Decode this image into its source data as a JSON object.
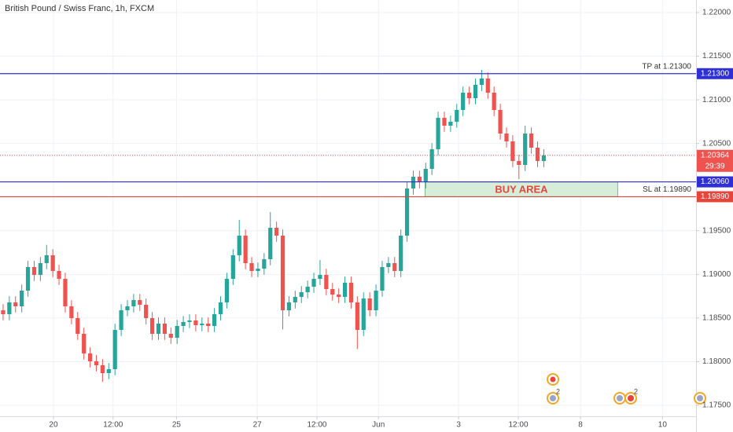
{
  "chart_data": {
    "type": "candlestick",
    "title": "British Pound / Swiss Franc, 1h, FXCM",
    "ylim": [
      1.17374,
      1.22144
    ],
    "yticks": [
      {
        "value": 1.22,
        "label": "1.22000"
      },
      {
        "value": 1.215,
        "label": "1.21500"
      },
      {
        "value": 1.21,
        "label": "1.21000"
      },
      {
        "value": 1.205,
        "label": "1.20500"
      },
      {
        "value": 1.195,
        "label": "1.19500"
      },
      {
        "value": 1.19,
        "label": "1.19000"
      },
      {
        "value": 1.185,
        "label": "1.18500"
      },
      {
        "value": 1.18,
        "label": "1.18000"
      },
      {
        "value": 1.175,
        "label": "1.17500"
      }
    ],
    "xlim": [
      0,
      112
    ],
    "xticks": [
      {
        "value": 8.6,
        "label": "20"
      },
      {
        "value": 18.2,
        "label": "12:00"
      },
      {
        "value": 28.4,
        "label": "25"
      },
      {
        "value": 41.4,
        "label": "27"
      },
      {
        "value": 51.0,
        "label": "12:00"
      },
      {
        "value": 60.9,
        "label": "Jun"
      },
      {
        "value": 73.8,
        "label": "3"
      },
      {
        "value": 83.4,
        "label": "12:00"
      },
      {
        "value": 93.4,
        "label": "8"
      },
      {
        "value": 106.6,
        "label": "10"
      }
    ],
    "grid": true,
    "up_color": "#26a69a",
    "down_color": "#ef5350",
    "series": [
      {
        "open": [
          1.18589,
          1.18544,
          1.18679,
          1.18634,
          1.18814,
          1.19084,
          1.18994,
          1.19129,
          1.19219,
          1.19039,
          1.18949,
          1.18634,
          1.18499,
          1.18319,
          1.18094,
          1.18004,
          1.17959,
          1.17869,
          1.17914,
          1.18364,
          1.18589,
          1.18634,
          1.18706,
          1.18652,
          1.18499,
          1.18319,
          1.18436,
          1.18319,
          1.18274,
          1.18409,
          1.18454,
          1.18472,
          1.18418,
          1.18436,
          1.18409,
          1.18544,
          1.18679,
          1.18949,
          1.19219,
          1.19444,
          1.19129,
          1.19039,
          1.19066,
          1.19174,
          1.19534,
          1.19444,
          1.18589,
          1.18679,
          1.18742,
          1.18796,
          1.18859,
          1.18949,
          1.18994,
          1.18832,
          1.18769,
          1.18742,
          1.18904,
          1.18679,
          1.18364,
          1.18724,
          1.18589,
          1.18814,
          1.19084,
          1.19129,
          1.19039,
          1.19444,
          1.19984,
          1.20119,
          1.20056,
          1.20209,
          1.20434,
          1.20794,
          1.20704,
          1.20749,
          1.20884,
          1.21082,
          1.21019,
          1.21172,
          1.21244,
          1.21082,
          1.20884,
          1.20614,
          1.20524,
          1.20299,
          1.20254,
          1.20614,
          1.20452,
          1.20299
        ],
        "high": [
          1.18659,
          1.18749,
          1.18749,
          1.18884,
          1.19154,
          1.19154,
          1.19199,
          1.19339,
          1.19289,
          1.19109,
          1.19019,
          1.18704,
          1.18569,
          1.18389,
          1.18164,
          1.18074,
          1.18029,
          1.17984,
          1.18434,
          1.18659,
          1.18704,
          1.18776,
          1.18776,
          1.18722,
          1.18569,
          1.18506,
          1.18506,
          1.18389,
          1.18479,
          1.18524,
          1.18542,
          1.18542,
          1.18506,
          1.18506,
          1.18614,
          1.18749,
          1.19019,
          1.19289,
          1.19624,
          1.19514,
          1.19199,
          1.19136,
          1.19244,
          1.19714,
          1.19604,
          1.19514,
          1.18749,
          1.18812,
          1.18866,
          1.18929,
          1.19019,
          1.19164,
          1.19064,
          1.18902,
          1.18839,
          1.18974,
          1.18974,
          1.18749,
          1.18794,
          1.18794,
          1.18884,
          1.19154,
          1.19199,
          1.19199,
          1.19514,
          1.20054,
          1.20189,
          1.20189,
          1.20279,
          1.20504,
          1.20864,
          1.20864,
          1.20819,
          1.20954,
          1.21152,
          1.21152,
          1.21242,
          1.21344,
          1.21314,
          1.21152,
          1.20954,
          1.20684,
          1.20594,
          1.20369,
          1.20704,
          1.20684,
          1.20522,
          1.20434
        ],
        "low": [
          1.18474,
          1.18474,
          1.18564,
          1.18564,
          1.18744,
          1.18924,
          1.18924,
          1.19059,
          1.18969,
          1.18879,
          1.18564,
          1.18429,
          1.18249,
          1.18024,
          1.17934,
          1.17889,
          1.17769,
          1.17799,
          1.17844,
          1.18294,
          1.18519,
          1.18564,
          1.18582,
          1.18429,
          1.18249,
          1.18249,
          1.18249,
          1.18204,
          1.18204,
          1.18339,
          1.18384,
          1.18348,
          1.18348,
          1.18339,
          1.18339,
          1.18474,
          1.18609,
          1.18879,
          1.19149,
          1.19059,
          1.18969,
          1.18969,
          1.18996,
          1.19104,
          1.19374,
          1.18369,
          1.18519,
          1.18609,
          1.18672,
          1.18726,
          1.18789,
          1.18879,
          1.18762,
          1.18699,
          1.18672,
          1.18672,
          1.18609,
          1.18144,
          1.18294,
          1.18519,
          1.18519,
          1.18744,
          1.19014,
          1.18969,
          1.18969,
          1.19374,
          1.19914,
          1.19986,
          1.19986,
          1.20139,
          1.20364,
          1.20634,
          1.20634,
          1.20679,
          1.20814,
          1.20949,
          1.20949,
          1.21102,
          1.21012,
          1.20814,
          1.20544,
          1.20454,
          1.20229,
          1.20094,
          1.20184,
          1.20382,
          1.20229,
          1.20229
        ],
        "close": [
          1.18544,
          1.18679,
          1.18634,
          1.18814,
          1.19084,
          1.18994,
          1.19129,
          1.19219,
          1.19039,
          1.18949,
          1.18634,
          1.18499,
          1.18319,
          1.18094,
          1.18004,
          1.17959,
          1.17869,
          1.17914,
          1.18364,
          1.18589,
          1.18634,
          1.18706,
          1.18652,
          1.18499,
          1.18319,
          1.18436,
          1.18319,
          1.18274,
          1.18409,
          1.18454,
          1.18472,
          1.18418,
          1.18436,
          1.18409,
          1.18544,
          1.18679,
          1.18949,
          1.19219,
          1.19444,
          1.19129,
          1.19039,
          1.19066,
          1.19174,
          1.19534,
          1.19444,
          1.18589,
          1.18679,
          1.18742,
          1.18796,
          1.18859,
          1.18949,
          1.18994,
          1.18832,
          1.18769,
          1.18742,
          1.18904,
          1.18679,
          1.18364,
          1.18724,
          1.18589,
          1.18814,
          1.19084,
          1.19129,
          1.19039,
          1.19444,
          1.19984,
          1.20119,
          1.20056,
          1.20209,
          1.20434,
          1.20794,
          1.20704,
          1.20749,
          1.20884,
          1.21082,
          1.21019,
          1.21172,
          1.21244,
          1.21082,
          1.20884,
          1.20614,
          1.20524,
          1.20299,
          1.20254,
          1.20614,
          1.20452,
          1.20299,
          1.20364
        ]
      }
    ],
    "levels": [
      {
        "name": "TP at 1.21300",
        "value": 1.213,
        "label": "1.21300",
        "color": "#2f2fd6"
      },
      {
        "value": 1.2006,
        "label": "1.20060",
        "color": "#2f2fd6"
      },
      {
        "name": "SL at 1.19890",
        "value": 1.1989,
        "label": "1.19890",
        "color": "#e5453a"
      }
    ],
    "current_price": {
      "value": 1.20364,
      "label": "1.20364",
      "countdown": "29:39",
      "color": "#ef5350"
    },
    "zone": {
      "text": "BUY AREA",
      "x": [
        68.4,
        99.4
      ],
      "y": [
        1.1989,
        1.2006
      ],
      "color": "#e5453a"
    },
    "event_badges": [
      "2",
      "2"
    ]
  }
}
